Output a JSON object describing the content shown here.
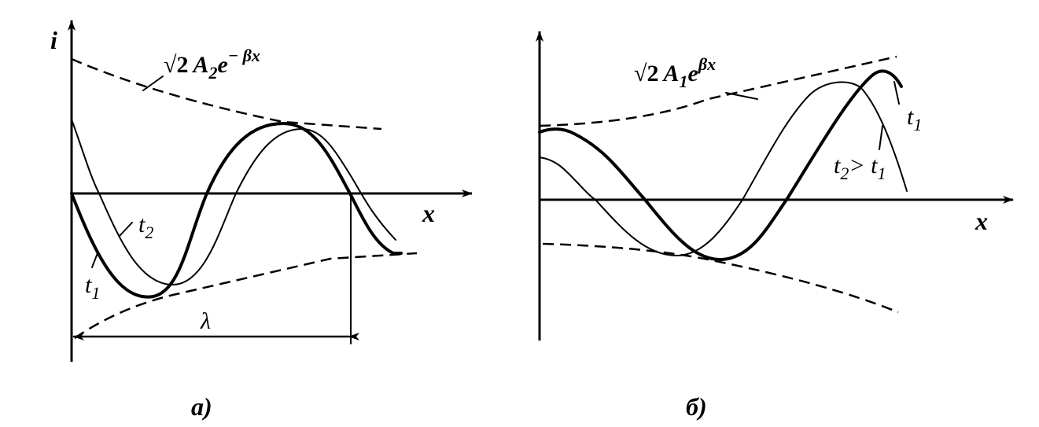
{
  "panel_a": {
    "caption": "а)",
    "y_axis_label": "i",
    "x_axis_label": "x",
    "envelope_label": {
      "root": "√2",
      "amp": "A",
      "amp_sub": "2",
      "base": "e",
      "exp": "− βx"
    },
    "curve_labels": [
      {
        "t": "t",
        "sub": "2"
      },
      {
        "t": "t",
        "sub": "1"
      }
    ],
    "wavelength_label": "λ"
  },
  "panel_b": {
    "caption": "б)",
    "x_axis_label": "x",
    "envelope_label": {
      "root": "√2",
      "amp": "A",
      "amp_sub": "1",
      "base": "e",
      "exp": "βx"
    },
    "curve_labels": [
      {
        "t": "t",
        "sub": "1"
      },
      {
        "t": "t",
        "sub": "2",
        "rel": "> t",
        "rel_sub": "1"
      }
    ]
  }
}
